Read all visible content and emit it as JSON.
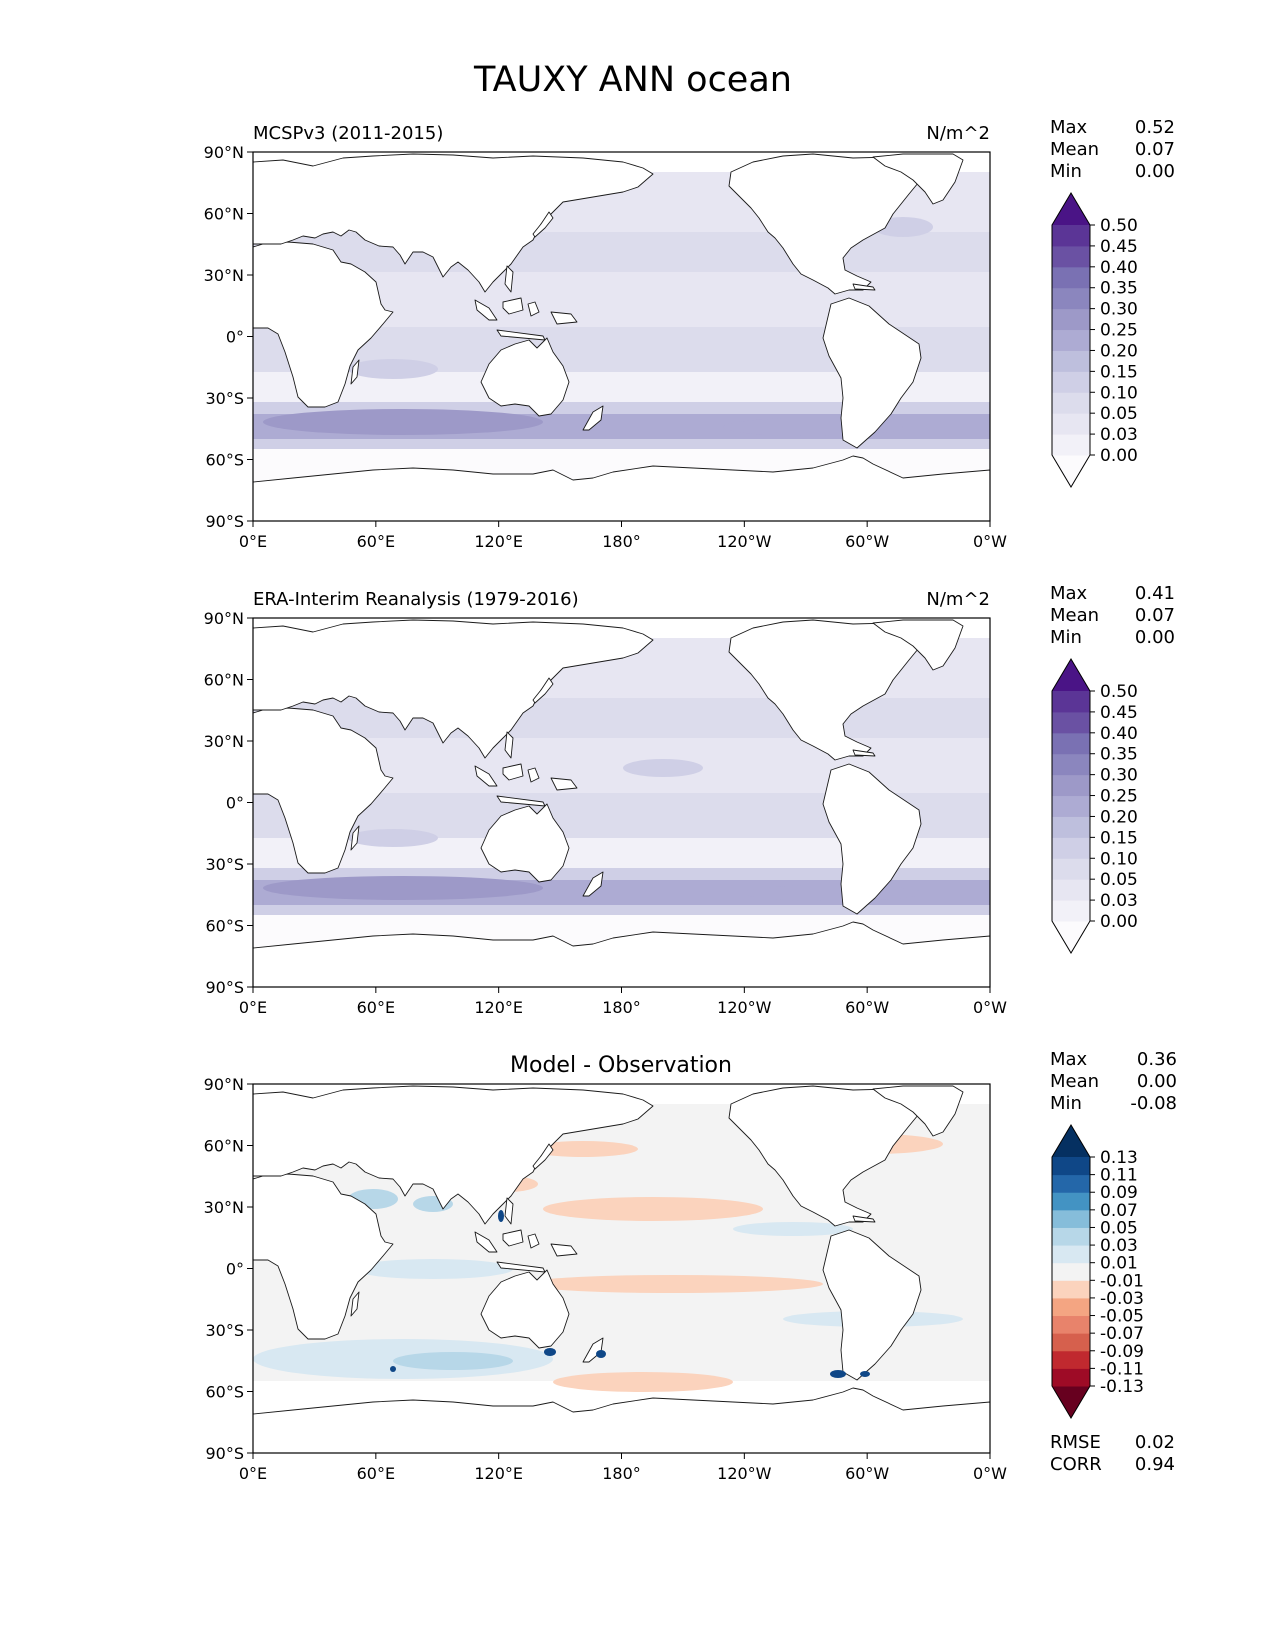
{
  "suptitle": "TAUXY ANN ocean",
  "panels": [
    {
      "left_title": "MCSPv3 (2011-2015)",
      "center_title": "",
      "right_title": "N/m^2",
      "stats": [
        {
          "label": "Max",
          "value": "0.52"
        },
        {
          "label": "Mean",
          "value": "0.07"
        },
        {
          "label": "Min",
          "value": "0.00"
        }
      ],
      "cmap": "purples",
      "cbar_ticks": [
        "0.00",
        "0.03",
        "0.05",
        "0.10",
        "0.15",
        "0.20",
        "0.25",
        "0.30",
        "0.35",
        "0.40",
        "0.45",
        "0.50"
      ],
      "cbar_colors": [
        "#fcfbfd",
        "#f2f1f8",
        "#e7e6f2",
        "#dcdcec",
        "#cfcfe6",
        "#bebfdd",
        "#adabd3",
        "#9d99c8",
        "#8b86be",
        "#7a71b3",
        "#6a51a3",
        "#5b3596",
        "#4a1486"
      ],
      "footer": []
    },
    {
      "left_title": "ERA-Interim Reanalysis (1979-2016)",
      "center_title": "",
      "right_title": "N/m^2",
      "stats": [
        {
          "label": "Max",
          "value": "0.41"
        },
        {
          "label": "Mean",
          "value": "0.07"
        },
        {
          "label": "Min",
          "value": "0.00"
        }
      ],
      "cmap": "purples",
      "cbar_ticks": [
        "0.00",
        "0.03",
        "0.05",
        "0.10",
        "0.15",
        "0.20",
        "0.25",
        "0.30",
        "0.35",
        "0.40",
        "0.45",
        "0.50"
      ],
      "cbar_colors": [
        "#fcfbfd",
        "#f2f1f8",
        "#e7e6f2",
        "#dcdcec",
        "#cfcfe6",
        "#bebfdd",
        "#adabd3",
        "#9d99c8",
        "#8b86be",
        "#7a71b3",
        "#6a51a3",
        "#5b3596",
        "#4a1486"
      ],
      "footer": []
    },
    {
      "left_title": "",
      "center_title": "Model - Observation",
      "right_title": "",
      "stats": [
        {
          "label": "Max",
          "value": "0.36"
        },
        {
          "label": "Mean",
          "value": "0.00"
        },
        {
          "label": "Min",
          "value": "-0.08"
        }
      ],
      "cmap": "diverging",
      "cbar_ticks": [
        "-0.13",
        "-0.11",
        "-0.09",
        "-0.07",
        "-0.05",
        "-0.03",
        "-0.01",
        "0.01",
        "0.03",
        "0.05",
        "0.07",
        "0.09",
        "0.11",
        "0.13"
      ],
      "cbar_colors": [
        "#67001f",
        "#9e0b26",
        "#c0292f",
        "#d6604d",
        "#e8836b",
        "#f4a582",
        "#fbd3bd",
        "#f3f3f3",
        "#d8e8f2",
        "#b7d7e8",
        "#86bdda",
        "#4393c3",
        "#2467a9",
        "#0f4787",
        "#053061"
      ],
      "footer": [
        {
          "label": "RMSE",
          "value": "0.02"
        },
        {
          "label": "CORR",
          "value": "0.94"
        }
      ]
    }
  ],
  "x_ticks": [
    "0°E",
    "60°E",
    "120°E",
    "180°",
    "120°W",
    "60°W",
    "0°W"
  ],
  "y_ticks": [
    "90°N",
    "60°N",
    "30°N",
    "0°",
    "30°S",
    "60°S",
    "90°S"
  ]
}
